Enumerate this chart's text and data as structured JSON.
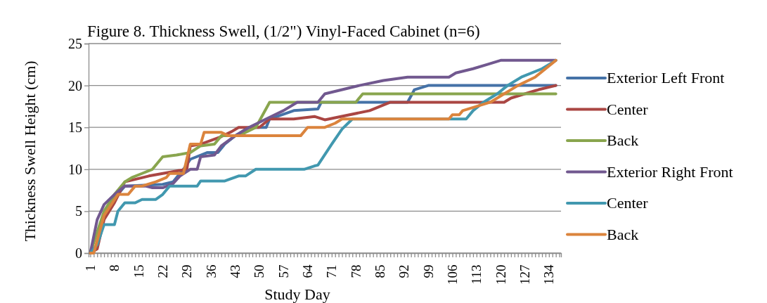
{
  "chart_data": {
    "type": "line",
    "title": "Figure 8. Thickness  Swell, (1/2\") Vinyl-Faced Cabinet (n=6)",
    "xlabel": "Study Day",
    "ylabel": "Thickness  Swell Height (cm)",
    "xlim": [
      0.5,
      137.5
    ],
    "xticks": [
      1,
      {
        "value": 2,
        "label": null
      },
      {
        "value": 3,
        "label": null
      },
      {
        "value": 4,
        "label": null
      },
      {
        "value": 5,
        "label": null
      },
      {
        "value": 6,
        "label": null
      },
      {
        "value": 7,
        "label": null
      },
      8,
      {
        "value": 9,
        "label": null
      },
      {
        "value": 10,
        "label": null
      },
      {
        "value": 11,
        "label": null
      },
      {
        "value": 12,
        "label": null
      },
      {
        "value": 13,
        "label": null
      },
      {
        "value": 14,
        "label": null
      },
      15,
      {
        "value": 16,
        "label": null
      },
      {
        "value": 17,
        "label": null
      },
      {
        "value": 18,
        "label": null
      },
      {
        "value": 19,
        "label": null
      },
      {
        "value": 20,
        "label": null
      },
      {
        "value": 21,
        "label": null
      },
      22,
      {
        "value": 23,
        "label": null
      },
      {
        "value": 24,
        "label": null
      },
      {
        "value": 25,
        "label": null
      },
      {
        "value": 26,
        "label": null
      },
      {
        "value": 27,
        "label": null
      },
      {
        "value": 28,
        "label": null
      },
      29,
      {
        "value": 30,
        "label": null
      },
      {
        "value": 31,
        "label": null
      },
      {
        "value": 32,
        "label": null
      },
      {
        "value": 33,
        "label": null
      },
      {
        "value": 34,
        "label": null
      },
      {
        "value": 35,
        "label": null
      },
      36,
      {
        "value": 37,
        "label": null
      },
      {
        "value": 38,
        "label": null
      },
      {
        "value": 39,
        "label": null
      },
      {
        "value": 40,
        "label": null
      },
      {
        "value": 41,
        "label": null
      },
      {
        "value": 42,
        "label": null
      },
      43,
      {
        "value": 44,
        "label": null
      },
      {
        "value": 45,
        "label": null
      },
      {
        "value": 46,
        "label": null
      },
      {
        "value": 47,
        "label": null
      },
      {
        "value": 48,
        "label": null
      },
      {
        "value": 49,
        "label": null
      },
      50,
      {
        "value": 51,
        "label": null
      },
      {
        "value": 52,
        "label": null
      },
      {
        "value": 53,
        "label": null
      },
      {
        "value": 54,
        "label": null
      },
      {
        "value": 55,
        "label": null
      },
      {
        "value": 56,
        "label": null
      },
      57,
      {
        "value": 58,
        "label": null
      },
      {
        "value": 59,
        "label": null
      },
      {
        "value": 60,
        "label": null
      },
      {
        "value": 61,
        "label": null
      },
      {
        "value": 62,
        "label": null
      },
      {
        "value": 63,
        "label": null
      },
      64,
      {
        "value": 65,
        "label": null
      },
      {
        "value": 66,
        "label": null
      },
      {
        "value": 67,
        "label": null
      },
      {
        "value": 68,
        "label": null
      },
      {
        "value": 69,
        "label": null
      },
      {
        "value": 70,
        "label": null
      },
      71,
      {
        "value": 72,
        "label": null
      },
      {
        "value": 73,
        "label": null
      },
      {
        "value": 74,
        "label": null
      },
      {
        "value": 75,
        "label": null
      },
      {
        "value": 76,
        "label": null
      },
      {
        "value": 77,
        "label": null
      },
      78,
      {
        "value": 79,
        "label": null
      },
      {
        "value": 80,
        "label": null
      },
      {
        "value": 81,
        "label": null
      },
      {
        "value": 82,
        "label": null
      },
      {
        "value": 83,
        "label": null
      },
      {
        "value": 84,
        "label": null
      },
      85,
      {
        "value": 86,
        "label": null
      },
      {
        "value": 87,
        "label": null
      },
      {
        "value": 88,
        "label": null
      },
      {
        "value": 89,
        "label": null
      },
      {
        "value": 90,
        "label": null
      },
      {
        "value": 91,
        "label": null
      },
      92,
      {
        "value": 93,
        "label": null
      },
      {
        "value": 94,
        "label": null
      },
      {
        "value": 95,
        "label": null
      },
      {
        "value": 96,
        "label": null
      },
      {
        "value": 97,
        "label": null
      },
      {
        "value": 98,
        "label": null
      },
      99,
      {
        "value": 100,
        "label": null
      },
      {
        "value": 101,
        "label": null
      },
      {
        "value": 102,
        "label": null
      },
      {
        "value": 103,
        "label": null
      },
      {
        "value": 104,
        "label": null
      },
      {
        "value": 105,
        "label": null
      },
      106,
      {
        "value": 107,
        "label": null
      },
      {
        "value": 108,
        "label": null
      },
      {
        "value": 109,
        "label": null
      },
      {
        "value": 110,
        "label": null
      },
      {
        "value": 111,
        "label": null
      },
      {
        "value": 112,
        "label": null
      },
      113,
      {
        "value": 114,
        "label": null
      },
      {
        "value": 115,
        "label": null
      },
      {
        "value": 116,
        "label": null
      },
      {
        "value": 117,
        "label": null
      },
      {
        "value": 118,
        "label": null
      },
      {
        "value": 119,
        "label": null
      },
      120,
      {
        "value": 121,
        "label": null
      },
      {
        "value": 122,
        "label": null
      },
      {
        "value": 123,
        "label": null
      },
      {
        "value": 124,
        "label": null
      },
      {
        "value": 125,
        "label": null
      },
      {
        "value": 126,
        "label": null
      },
      127,
      {
        "value": 128,
        "label": null
      },
      {
        "value": 129,
        "label": null
      },
      {
        "value": 130,
        "label": null
      },
      {
        "value": 131,
        "label": null
      },
      {
        "value": 132,
        "label": null
      },
      {
        "value": 133,
        "label": null
      },
      134,
      {
        "value": 135,
        "label": null
      },
      {
        "value": 136,
        "label": null
      },
      {
        "value": 137,
        "label": null
      }
    ],
    "ylim": [
      0,
      25
    ],
    "yticks": [
      0,
      5,
      10,
      15,
      20,
      25
    ],
    "grid": "y",
    "legend": "right",
    "marker": "none",
    "line_style": "solid",
    "series": [
      {
        "name": "Exterior Left Front",
        "color": "#4572a7",
        "x": [
          1,
          3,
          5,
          7,
          9,
          11,
          22,
          25,
          28,
          30,
          35,
          38,
          40,
          43,
          47,
          52,
          53,
          60,
          67,
          68,
          93,
          95,
          99,
          136
        ],
        "values": [
          0,
          1,
          4.5,
          6,
          7,
          8,
          8.2,
          8.5,
          10,
          11.2,
          12,
          12,
          13,
          14,
          15,
          15,
          16,
          17,
          17.2,
          18,
          18,
          19.5,
          20,
          20
        ]
      },
      {
        "name": "Center",
        "color": "#aa4643",
        "x": [
          1,
          3,
          5,
          8,
          11,
          18,
          22,
          26,
          29,
          30,
          33,
          39,
          42,
          44,
          50,
          53,
          60,
          66,
          69,
          82,
          88,
          121,
          123,
          131,
          136
        ],
        "values": [
          0,
          0.5,
          4,
          6,
          8.5,
          9.2,
          9.5,
          9.8,
          10,
          12.8,
          13,
          13.9,
          14.5,
          15,
          15,
          16,
          16,
          16.3,
          15.9,
          17,
          18,
          18,
          18.5,
          19.5,
          20
        ]
      },
      {
        "name": "Back",
        "color": "#89a54e",
        "x": [
          1,
          5,
          8,
          11,
          13,
          16,
          19,
          22,
          26,
          30,
          33,
          37,
          39,
          44,
          49,
          53,
          78,
          80,
          136
        ],
        "values": [
          0,
          5,
          7,
          8.5,
          9,
          9.5,
          10,
          11.5,
          11.7,
          12,
          12.8,
          13,
          14,
          14,
          15,
          18,
          18,
          19,
          19
        ]
      },
      {
        "name": "Exterior Right Front",
        "color": "#71588f",
        "x": [
          1,
          3,
          5,
          8,
          11,
          17,
          19,
          22,
          25,
          27,
          30,
          32,
          33,
          37,
          39,
          43,
          47,
          52,
          57,
          61,
          67,
          69,
          79,
          86,
          93,
          105,
          107,
          112,
          116,
          120,
          136
        ],
        "values": [
          0,
          4,
          5.8,
          7,
          8,
          8,
          7.8,
          7.8,
          8.3,
          9.2,
          10,
          10,
          11.5,
          11.7,
          12.8,
          14,
          15,
          16,
          17,
          18,
          18,
          19,
          20,
          20.6,
          21,
          21,
          21.5,
          22,
          22.5,
          23,
          23
        ]
      },
      {
        "name": "Center",
        "color": "#4198af",
        "x": [
          1,
          3,
          5,
          8,
          9,
          11,
          14,
          16,
          20,
          22,
          24,
          32,
          33,
          40,
          44,
          46,
          49,
          63,
          66,
          67,
          71,
          74,
          77,
          110,
          112,
          115,
          119,
          122,
          126,
          132,
          136
        ],
        "values": [
          0,
          1,
          3.4,
          3.4,
          5,
          6,
          6,
          6.4,
          6.4,
          7,
          8,
          8,
          8.6,
          8.6,
          9.2,
          9.2,
          10,
          10,
          10.4,
          10.5,
          13,
          14.8,
          16,
          16,
          17,
          18,
          19,
          20,
          21,
          22,
          23
        ]
      },
      {
        "name": "Back",
        "color": "#db843d",
        "x": [
          1,
          2,
          5,
          9,
          12,
          14,
          16,
          20,
          23,
          24,
          28,
          30,
          33,
          34,
          39,
          41,
          62,
          64,
          69,
          72,
          74,
          105,
          106,
          108,
          109,
          113,
          117,
          121,
          125,
          130,
          136
        ],
        "values": [
          0,
          0,
          4.5,
          7,
          7,
          8,
          8,
          8.5,
          9,
          9.5,
          9.5,
          13,
          13,
          14.4,
          14.4,
          14,
          14,
          15,
          15,
          15.5,
          16,
          16,
          16.5,
          16.5,
          17,
          17.5,
          18,
          19,
          20,
          21,
          23
        ]
      }
    ]
  }
}
